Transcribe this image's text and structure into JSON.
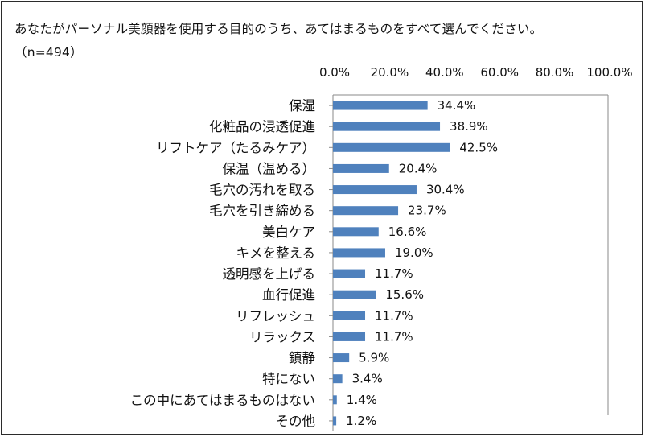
{
  "chart_data": {
    "type": "bar",
    "orientation": "horizontal",
    "title": "あなたがパーソナル美顔器を使用する目的のうち、あてはまるものをすべて選んでください。（n=494）",
    "categories": [
      "保湿",
      "化粧品の浸透促進",
      "リフトケア（たるみケア）",
      "保温（温める）",
      "毛穴の汚れを取る",
      "毛穴を引き締める",
      "美白ケア",
      "キメを整える",
      "透明感を上げる",
      "血行促進",
      "リフレッシュ",
      "リラックス",
      "鎮静",
      "特にない",
      "この中にあてはまるものはない",
      "その他"
    ],
    "values": [
      34.4,
      38.9,
      42.5,
      20.4,
      30.4,
      23.7,
      16.6,
      19.0,
      11.7,
      15.6,
      11.7,
      11.7,
      5.9,
      3.4,
      1.4,
      1.2
    ],
    "value_labels": [
      "34.4%",
      "38.9%",
      "42.5%",
      "20.4%",
      "30.4%",
      "23.7%",
      "16.6%",
      "19.0%",
      "11.7%",
      "15.6%",
      "11.7%",
      "11.7%",
      "5.9%",
      "3.4%",
      "1.4%",
      "1.2%"
    ],
    "xlim": [
      0,
      100
    ],
    "x_ticks": [
      0,
      20,
      40,
      60,
      80,
      100
    ],
    "x_tick_labels": [
      "0.0%",
      "20.0%",
      "40.0%",
      "60.0%",
      "80.0%",
      "100.0%"
    ],
    "axis_position": "top",
    "grid": false,
    "legend": "none",
    "bar_color": "#4f81bd"
  }
}
